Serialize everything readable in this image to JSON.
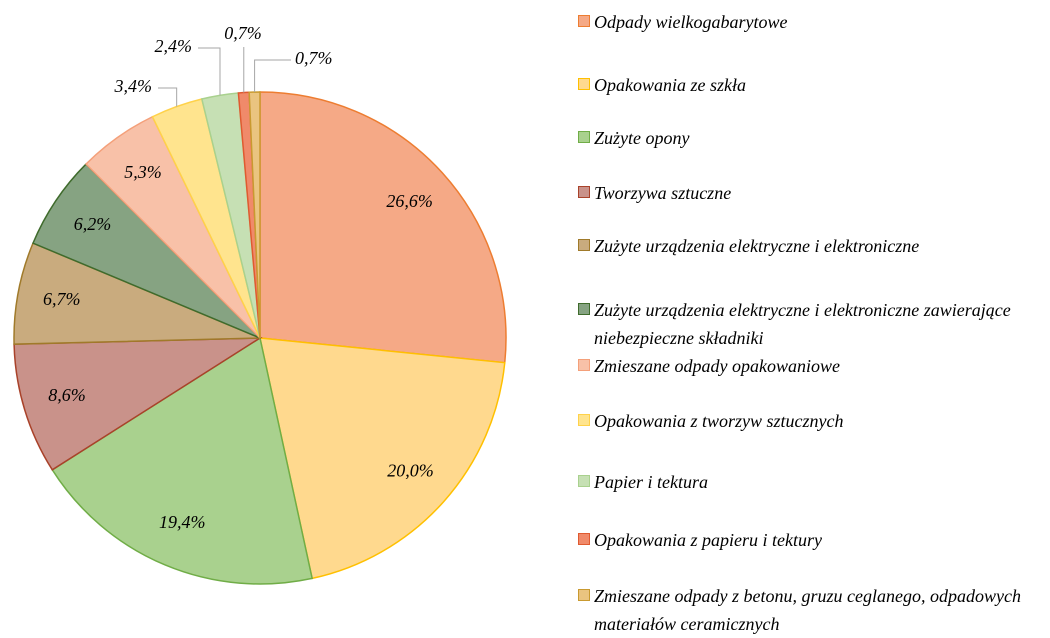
{
  "chart_data": {
    "type": "pie",
    "categories": [
      "Odpady wielkogabarytowe",
      "Opakowania ze szkła",
      "Zużyte opony",
      "Tworzywa sztuczne",
      "Zużyte urządzenia elektryczne i elektroniczne",
      "Zużyte urządzenia elektryczne i elektroniczne zawierające niebezpieczne składniki",
      "Zmieszane odpady opakowaniowe",
      "Opakowania z tworzyw sztucznych",
      "Papier i tektura",
      "Opakowania z papieru i tektury",
      "Zmieszane odpady z betonu, gruzu ceglanego, odpadowych materiałów ceramicznych"
    ],
    "values": [
      26.6,
      20.0,
      19.4,
      8.6,
      6.7,
      6.2,
      5.3,
      3.4,
      2.4,
      0.7,
      0.7
    ],
    "value_labels": [
      "26,6%",
      "20,0%",
      "19,4%",
      "8,6%",
      "6,7%",
      "6,2%",
      "5,3%",
      "3,4%",
      "2,4%",
      "0,7%",
      "0,7%"
    ],
    "colors": [
      "#f5a986",
      "#ffd98e",
      "#a9d18e",
      "#c9928a",
      "#c9ab7e",
      "#86a382",
      "#f8c1a8",
      "#ffe48e",
      "#c6e0b4",
      "#f08a6a",
      "#eac480"
    ],
    "border_colors": [
      "#ed7d31",
      "#ffc000",
      "#70ad47",
      "#a9422a",
      "#a07a2a",
      "#3f6b2c",
      "#f4a07a",
      "#ffd24a",
      "#a9d18e",
      "#e05a30",
      "#c99a30"
    ],
    "legend": "right"
  }
}
